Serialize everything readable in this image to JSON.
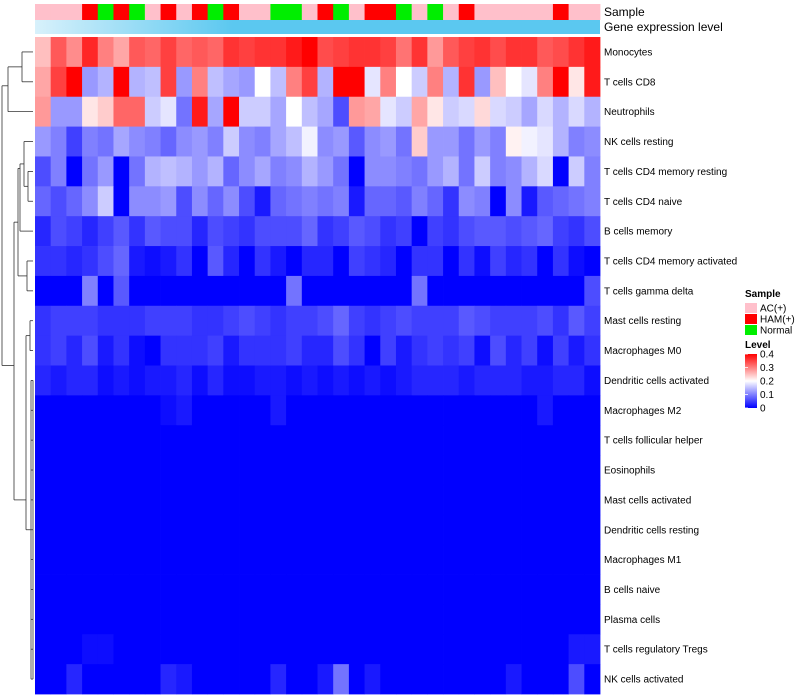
{
  "chart_data": {
    "type": "heatmap",
    "annotation_rows": [
      {
        "label": "Sample"
      },
      {
        "label": "Gene expression level"
      }
    ],
    "rows": [
      "Monocytes",
      "T cells CD8",
      "Neutrophils",
      "NK cells resting",
      "T cells CD4 memory resting",
      "T cells CD4 naive",
      "B cells memory",
      "T cells CD4 memory activated",
      "T cells gamma delta",
      "Mast cells resting",
      "Macrophages M0",
      "Dendritic cells activated",
      "Macrophages M2",
      "T cells follicular helper",
      "Eosinophils",
      "Mast cells activated",
      "Dendritic cells resting",
      "Macrophages M1",
      "B cells naive",
      "Plasma cells",
      "T cells regulatory  Tregs",
      "NK cells activated"
    ],
    "sample_groups": [
      "AC",
      "AC",
      "AC",
      "HAM",
      "Normal",
      "HAM",
      "Normal",
      "AC",
      "HAM",
      "AC",
      "HAM",
      "Normal",
      "HAM",
      "AC",
      "AC",
      "Normal",
      "Normal",
      "AC",
      "HAM",
      "Normal",
      "AC",
      "HAM",
      "HAM",
      "Normal",
      "AC",
      "Normal",
      "AC",
      "HAM",
      "AC",
      "AC",
      "AC",
      "AC",
      "AC",
      "HAM",
      "AC",
      "AC"
    ],
    "expression_level_color": "#5bc8f0",
    "values": [
      [
        0.25,
        0.33,
        0.29,
        0.37,
        0.3,
        0.27,
        0.33,
        0.32,
        0.35,
        0.32,
        0.33,
        0.32,
        0.36,
        0.35,
        0.36,
        0.36,
        0.38,
        0.4,
        0.34,
        0.35,
        0.36,
        0.36,
        0.35,
        0.31,
        0.36,
        0.28,
        0.33,
        0.35,
        0.36,
        0.34,
        0.36,
        0.36,
        0.33,
        0.34,
        0.36,
        0.38
      ],
      [
        0.27,
        0.35,
        0.4,
        0.12,
        0.14,
        0.4,
        0.14,
        0.15,
        0.35,
        0.12,
        0.3,
        0.15,
        0.13,
        0.12,
        0.2,
        0.15,
        0.3,
        0.35,
        0.14,
        0.4,
        0.4,
        0.18,
        0.3,
        0.2,
        0.16,
        0.3,
        0.14,
        0.36,
        0.12,
        0.25,
        0.2,
        0.18,
        0.3,
        0.4,
        0.22,
        0.38
      ],
      [
        0.28,
        0.12,
        0.12,
        0.22,
        0.24,
        0.32,
        0.32,
        0.16,
        0.18,
        0.09,
        0.38,
        0.13,
        0.4,
        0.16,
        0.16,
        0.13,
        0.2,
        0.15,
        0.13,
        0.06,
        0.28,
        0.27,
        0.18,
        0.16,
        0.27,
        0.22,
        0.16,
        0.17,
        0.23,
        0.17,
        0.16,
        0.13,
        0.17,
        0.14,
        0.17,
        0.14
      ],
      [
        0.12,
        0.1,
        0.05,
        0.1,
        0.09,
        0.13,
        0.11,
        0.1,
        0.08,
        0.11,
        0.12,
        0.1,
        0.16,
        0.11,
        0.1,
        0.13,
        0.15,
        0.19,
        0.11,
        0.12,
        0.07,
        0.11,
        0.12,
        0.09,
        0.24,
        0.12,
        0.12,
        0.09,
        0.12,
        0.1,
        0.21,
        0.19,
        0.18,
        0.14,
        0.1,
        0.11
      ],
      [
        0.06,
        0.1,
        0.0,
        0.09,
        0.12,
        0.0,
        0.09,
        0.14,
        0.15,
        0.14,
        0.12,
        0.14,
        0.08,
        0.11,
        0.13,
        0.1,
        0.11,
        0.14,
        0.12,
        0.09,
        0.0,
        0.11,
        0.11,
        0.1,
        0.09,
        0.12,
        0.14,
        0.09,
        0.16,
        0.1,
        0.11,
        0.14,
        0.17,
        0.0,
        0.16,
        0.1
      ],
      [
        0.08,
        0.06,
        0.08,
        0.11,
        0.16,
        0.0,
        0.11,
        0.11,
        0.12,
        0.06,
        0.11,
        0.08,
        0.11,
        0.06,
        0.02,
        0.08,
        0.09,
        0.1,
        0.09,
        0.1,
        0.02,
        0.08,
        0.08,
        0.07,
        0.1,
        0.08,
        0.04,
        0.11,
        0.1,
        0.0,
        0.11,
        0.02,
        0.07,
        0.08,
        0.09,
        0.1
      ],
      [
        0.03,
        0.06,
        0.05,
        0.03,
        0.05,
        0.07,
        0.04,
        0.07,
        0.06,
        0.06,
        0.03,
        0.06,
        0.05,
        0.04,
        0.06,
        0.06,
        0.06,
        0.08,
        0.04,
        0.05,
        0.07,
        0.06,
        0.04,
        0.05,
        0.0,
        0.05,
        0.04,
        0.06,
        0.07,
        0.07,
        0.06,
        0.07,
        0.08,
        0.05,
        0.04,
        0.06
      ],
      [
        0.04,
        0.04,
        0.03,
        0.04,
        0.06,
        0.08,
        0.02,
        0.01,
        0.02,
        0.04,
        0.0,
        0.07,
        0.03,
        0.0,
        0.04,
        0.02,
        0.0,
        0.03,
        0.03,
        0.0,
        0.05,
        0.04,
        0.03,
        0.0,
        0.04,
        0.04,
        0.0,
        0.04,
        0.01,
        0.05,
        0.03,
        0.04,
        0.0,
        0.04,
        0.01,
        0.0
      ],
      [
        0.0,
        0.0,
        0.0,
        0.1,
        0.0,
        0.07,
        0.0,
        0.0,
        0.0,
        0.0,
        0.0,
        0.0,
        0.0,
        0.0,
        0.0,
        0.0,
        0.09,
        0.0,
        0.0,
        0.0,
        0.0,
        0.0,
        0.0,
        0.0,
        0.09,
        0.0,
        0.0,
        0.0,
        0.0,
        0.0,
        0.0,
        0.0,
        0.0,
        0.0,
        0.0,
        0.06
      ],
      [
        0.04,
        0.05,
        0.05,
        0.05,
        0.04,
        0.04,
        0.04,
        0.05,
        0.05,
        0.05,
        0.04,
        0.04,
        0.05,
        0.06,
        0.05,
        0.04,
        0.05,
        0.05,
        0.06,
        0.08,
        0.05,
        0.04,
        0.05,
        0.06,
        0.05,
        0.05,
        0.05,
        0.07,
        0.06,
        0.05,
        0.05,
        0.05,
        0.06,
        0.04,
        0.07,
        0.05
      ],
      [
        0.04,
        0.05,
        0.03,
        0.06,
        0.02,
        0.04,
        0.01,
        0.0,
        0.04,
        0.04,
        0.04,
        0.05,
        0.02,
        0.04,
        0.04,
        0.04,
        0.05,
        0.03,
        0.03,
        0.06,
        0.04,
        0.0,
        0.05,
        0.02,
        0.04,
        0.05,
        0.04,
        0.05,
        0.01,
        0.06,
        0.03,
        0.05,
        0.01,
        0.05,
        0.02,
        0.04
      ],
      [
        0.03,
        0.02,
        0.03,
        0.03,
        0.01,
        0.02,
        0.01,
        0.02,
        0.02,
        0.03,
        0.01,
        0.03,
        0.01,
        0.01,
        0.02,
        0.02,
        0.01,
        0.02,
        0.01,
        0.02,
        0.01,
        0.02,
        0.01,
        0.02,
        0.03,
        0.03,
        0.03,
        0.02,
        0.03,
        0.03,
        0.03,
        0.02,
        0.02,
        0.03,
        0.03,
        0.01
      ],
      [
        0.0,
        0.0,
        0.0,
        0.0,
        0.0,
        0.0,
        0.0,
        0.0,
        0.01,
        0.02,
        0.0,
        0.0,
        0.0,
        0.0,
        0.0,
        0.02,
        0.0,
        0.0,
        0.0,
        0.0,
        0.0,
        0.0,
        0.0,
        0.0,
        0.0,
        0.0,
        0.0,
        0.0,
        0.0,
        0.0,
        0.0,
        0.0,
        0.02,
        0.0,
        0.0,
        0.0
      ],
      [
        0.0,
        0.0,
        0.0,
        0.0,
        0.0,
        0.0,
        0.0,
        0.0,
        0.0,
        0.0,
        0.0,
        0.0,
        0.0,
        0.0,
        0.0,
        0.0,
        0.0,
        0.0,
        0.0,
        0.0,
        0.0,
        0.0,
        0.0,
        0.0,
        0.0,
        0.0,
        0.0,
        0.0,
        0.0,
        0.0,
        0.0,
        0.0,
        0.0,
        0.0,
        0.0,
        0.0
      ],
      [
        0.0,
        0.0,
        0.0,
        0.0,
        0.0,
        0.0,
        0.0,
        0.0,
        0.0,
        0.0,
        0.0,
        0.0,
        0.0,
        0.0,
        0.0,
        0.0,
        0.0,
        0.0,
        0.0,
        0.0,
        0.0,
        0.0,
        0.0,
        0.0,
        0.0,
        0.0,
        0.0,
        0.0,
        0.0,
        0.0,
        0.0,
        0.0,
        0.0,
        0.0,
        0.0,
        0.0
      ],
      [
        0.0,
        0.0,
        0.0,
        0.0,
        0.0,
        0.0,
        0.0,
        0.0,
        0.0,
        0.0,
        0.0,
        0.0,
        0.0,
        0.0,
        0.0,
        0.0,
        0.0,
        0.0,
        0.0,
        0.0,
        0.0,
        0.0,
        0.0,
        0.0,
        0.0,
        0.0,
        0.0,
        0.0,
        0.0,
        0.0,
        0.0,
        0.0,
        0.0,
        0.0,
        0.0,
        0.0
      ],
      [
        0.0,
        0.0,
        0.0,
        0.0,
        0.0,
        0.0,
        0.0,
        0.0,
        0.0,
        0.0,
        0.0,
        0.0,
        0.0,
        0.0,
        0.0,
        0.0,
        0.0,
        0.0,
        0.0,
        0.0,
        0.0,
        0.0,
        0.0,
        0.0,
        0.0,
        0.0,
        0.0,
        0.0,
        0.0,
        0.0,
        0.0,
        0.0,
        0.0,
        0.0,
        0.0,
        0.0
      ],
      [
        0.0,
        0.0,
        0.0,
        0.0,
        0.0,
        0.0,
        0.0,
        0.0,
        0.0,
        0.0,
        0.0,
        0.0,
        0.0,
        0.0,
        0.0,
        0.0,
        0.0,
        0.0,
        0.0,
        0.0,
        0.0,
        0.0,
        0.0,
        0.0,
        0.0,
        0.0,
        0.0,
        0.0,
        0.0,
        0.0,
        0.0,
        0.0,
        0.0,
        0.0,
        0.0,
        0.0
      ],
      [
        0.0,
        0.0,
        0.0,
        0.0,
        0.0,
        0.0,
        0.0,
        0.0,
        0.0,
        0.0,
        0.0,
        0.0,
        0.0,
        0.0,
        0.0,
        0.0,
        0.0,
        0.0,
        0.0,
        0.0,
        0.0,
        0.0,
        0.0,
        0.0,
        0.0,
        0.0,
        0.0,
        0.0,
        0.0,
        0.0,
        0.0,
        0.0,
        0.0,
        0.0,
        0.0,
        0.0
      ],
      [
        0.0,
        0.0,
        0.0,
        0.0,
        0.0,
        0.0,
        0.0,
        0.0,
        0.0,
        0.0,
        0.0,
        0.0,
        0.0,
        0.0,
        0.0,
        0.0,
        0.0,
        0.0,
        0.0,
        0.0,
        0.0,
        0.0,
        0.0,
        0.0,
        0.0,
        0.0,
        0.0,
        0.0,
        0.0,
        0.0,
        0.0,
        0.0,
        0.0,
        0.0,
        0.0,
        0.0
      ],
      [
        0.0,
        0.0,
        0.0,
        0.01,
        0.01,
        0.0,
        0.0,
        0.0,
        0.0,
        0.0,
        0.0,
        0.0,
        0.0,
        0.0,
        0.0,
        0.0,
        0.0,
        0.0,
        0.0,
        0.0,
        0.0,
        0.0,
        0.0,
        0.0,
        0.0,
        0.0,
        0.0,
        0.0,
        0.0,
        0.0,
        0.0,
        0.0,
        0.0,
        0.0,
        0.02,
        0.02
      ],
      [
        0.0,
        0.0,
        0.03,
        0.0,
        0.0,
        0.0,
        0.0,
        0.0,
        0.03,
        0.02,
        0.0,
        0.0,
        0.0,
        0.0,
        0.0,
        0.03,
        0.0,
        0.0,
        0.02,
        0.09,
        0.0,
        0.02,
        0.0,
        0.0,
        0.0,
        0.0,
        0.0,
        0.0,
        0.0,
        0.0,
        0.02,
        0.0,
        0.0,
        0.0,
        0.06,
        0.0
      ]
    ],
    "legend": {
      "sample_title": "Sample",
      "sample_entries": [
        {
          "key": "AC",
          "label": "AC(+)",
          "color": "#ffc0cb"
        },
        {
          "key": "HAM",
          "label": "HAM(+)",
          "color": "#ff0000"
        },
        {
          "key": "Normal",
          "label": "Normal",
          "color": "#00ee00"
        }
      ],
      "level_title": "Level",
      "level_ticks": [
        "0.4",
        "0.3",
        "0.2",
        "0.1",
        "0"
      ],
      "level_range": [
        0,
        0.4
      ]
    },
    "color_scale": {
      "low": "#0000ff",
      "mid": "#ffffff",
      "high": "#ff0000",
      "mid_value": 0.2
    }
  }
}
